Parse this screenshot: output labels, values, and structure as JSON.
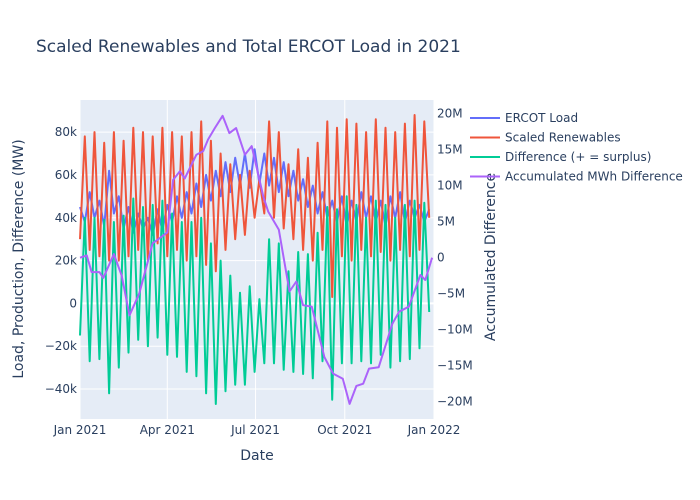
{
  "chart_data": {
    "type": "line",
    "title": "Scaled Renewables and Total ERCOT Load in 2021",
    "xlabel": "Date",
    "ylabel": "Load, Production, Difference (MW)",
    "y2label": "Accumulated Difference",
    "xlim": [
      "2021-01-01",
      "2022-01-01"
    ],
    "ylim": [
      -54000,
      95000
    ],
    "y2lim": [
      -22400000,
      21900000
    ],
    "grid": true,
    "legend_position": "right",
    "x_ticks": [
      {
        "date": "2021-01-01",
        "label": "Jan 2021"
      },
      {
        "date": "2021-04-01",
        "label": "Apr 2021"
      },
      {
        "date": "2021-07-01",
        "label": "Jul 2021"
      },
      {
        "date": "2021-10-01",
        "label": "Oct 2021"
      },
      {
        "date": "2022-01-01",
        "label": "Jan 2022"
      }
    ],
    "y_ticks": [
      {
        "value": 80000,
        "label": "80k"
      },
      {
        "value": 60000,
        "label": "60k"
      },
      {
        "value": 40000,
        "label": "40k"
      },
      {
        "value": 20000,
        "label": "20k"
      },
      {
        "value": 0,
        "label": "0"
      },
      {
        "value": -20000,
        "label": "−20k"
      },
      {
        "value": -40000,
        "label": "−40k"
      }
    ],
    "y2_ticks": [
      {
        "value": 20000000,
        "label": "20M"
      },
      {
        "value": 15000000,
        "label": "15M"
      },
      {
        "value": 10000000,
        "label": "10M"
      },
      {
        "value": 5000000,
        "label": "5M"
      },
      {
        "value": 0,
        "label": "0"
      },
      {
        "value": -5000000,
        "label": "−5M"
      },
      {
        "value": -10000000,
        "label": "−10M"
      },
      {
        "value": -15000000,
        "label": "−15M"
      },
      {
        "value": -20000000,
        "label": "−20M"
      }
    ],
    "x": [
      "2021-01-01",
      "2021-01-06",
      "2021-01-11",
      "2021-01-16",
      "2021-01-21",
      "2021-01-26",
      "2021-01-31",
      "2021-02-05",
      "2021-02-10",
      "2021-02-15",
      "2021-02-20",
      "2021-02-25",
      "2021-03-02",
      "2021-03-07",
      "2021-03-12",
      "2021-03-17",
      "2021-03-22",
      "2021-03-27",
      "2021-04-01",
      "2021-04-06",
      "2021-04-11",
      "2021-04-16",
      "2021-04-21",
      "2021-04-26",
      "2021-05-01",
      "2021-05-06",
      "2021-05-11",
      "2021-05-16",
      "2021-05-21",
      "2021-05-26",
      "2021-05-31",
      "2021-06-05",
      "2021-06-10",
      "2021-06-15",
      "2021-06-20",
      "2021-06-25",
      "2021-06-30",
      "2021-07-05",
      "2021-07-10",
      "2021-07-15",
      "2021-07-20",
      "2021-07-25",
      "2021-07-30",
      "2021-08-04",
      "2021-08-09",
      "2021-08-14",
      "2021-08-19",
      "2021-08-24",
      "2021-08-29",
      "2021-09-03",
      "2021-09-08",
      "2021-09-13",
      "2021-09-18",
      "2021-09-23",
      "2021-09-28",
      "2021-10-03",
      "2021-10-08",
      "2021-10-13",
      "2021-10-18",
      "2021-10-23",
      "2021-10-28",
      "2021-11-02",
      "2021-11-07",
      "2021-11-12",
      "2021-11-17",
      "2021-11-22",
      "2021-11-27",
      "2021-12-02",
      "2021-12-07",
      "2021-12-12",
      "2021-12-17",
      "2021-12-22",
      "2021-12-27"
    ],
    "series": [
      {
        "name": "ERCOT Load",
        "color": "#636efa",
        "axis": "y",
        "values": [
          45000,
          38000,
          52000,
          40000,
          48000,
          36000,
          62000,
          42000,
          50000,
          35000,
          45000,
          33000,
          42000,
          35000,
          40000,
          32000,
          44000,
          34000,
          46000,
          38000,
          50000,
          40000,
          52000,
          42000,
          56000,
          45000,
          60000,
          48000,
          62000,
          50000,
          66000,
          52000,
          68000,
          55000,
          70000,
          54000,
          72000,
          56000,
          70000,
          55000,
          68000,
          52000,
          66000,
          50000,
          62000,
          48000,
          58000,
          45000,
          55000,
          42000,
          52000,
          40000,
          48000,
          38000,
          50000,
          36000,
          48000,
          38000,
          52000,
          40000,
          50000,
          38000,
          48000,
          36000,
          50000,
          40000,
          52000,
          38000,
          48000,
          40000,
          46000,
          38000,
          44000
        ]
      },
      {
        "name": "Scaled Renewables",
        "color": "#EF553B",
        "axis": "y",
        "values": [
          30000,
          78000,
          25000,
          80000,
          22000,
          75000,
          20000,
          80000,
          20000,
          76000,
          22000,
          82000,
          25000,
          80000,
          20000,
          78000,
          28000,
          82000,
          22000,
          80000,
          25000,
          78000,
          20000,
          80000,
          22000,
          85000,
          18000,
          76000,
          15000,
          70000,
          25000,
          65000,
          30000,
          60000,
          32000,
          62000,
          40000,
          58000,
          42000,
          85000,
          40000,
          80000,
          35000,
          65000,
          30000,
          72000,
          25000,
          68000,
          20000,
          75000,
          25000,
          85000,
          3000,
          82000,
          22000,
          86000,
          20000,
          84000,
          25000,
          80000,
          22000,
          86000,
          24000,
          82000,
          20000,
          80000,
          25000,
          84000,
          22000,
          88000,
          25000,
          85000,
          40000
        ]
      },
      {
        "name": "Difference (+ = surplus)",
        "color": "#00cc96",
        "axis": "y",
        "values": [
          -15000,
          40000,
          -27000,
          40000,
          -26000,
          39000,
          -42000,
          38000,
          -30000,
          41000,
          -23000,
          49000,
          -17000,
          45000,
          -20000,
          46000,
          -16000,
          48000,
          -24000,
          42000,
          -25000,
          38000,
          -32000,
          38000,
          -34000,
          40000,
          -42000,
          28000,
          -47000,
          20000,
          -41000,
          13000,
          -38000,
          5000,
          -38000,
          8000,
          -32000,
          2000,
          -28000,
          30000,
          -28000,
          28000,
          -31000,
          15000,
          -32000,
          24000,
          -33000,
          23000,
          -35000,
          33000,
          -27000,
          45000,
          -45000,
          44000,
          -28000,
          50000,
          -28000,
          46000,
          -27000,
          40000,
          -28000,
          48000,
          -24000,
          46000,
          -30000,
          40000,
          -27000,
          46000,
          -26000,
          48000,
          -21000,
          47000,
          -4000
        ]
      },
      {
        "name": "Accumulated MWh Difference",
        "color": "#ab63fa",
        "axis": "y2",
        "x": [
          "2021-01-01",
          "2021-01-08",
          "2021-01-13",
          "2021-01-21",
          "2021-01-25",
          "2021-02-05",
          "2021-02-13",
          "2021-02-21",
          "2021-03-03",
          "2021-03-17",
          "2021-04-01",
          "2021-04-07",
          "2021-04-14",
          "2021-04-19",
          "2021-05-01",
          "2021-05-08",
          "2021-05-13",
          "2021-05-20",
          "2021-05-28",
          "2021-06-04",
          "2021-06-11",
          "2021-06-20",
          "2021-06-27",
          "2021-07-09",
          "2021-07-14",
          "2021-07-25",
          "2021-08-05",
          "2021-08-12",
          "2021-08-19",
          "2021-08-28",
          "2021-09-10",
          "2021-09-19",
          "2021-09-29",
          "2021-10-06",
          "2021-10-13",
          "2021-10-20",
          "2021-10-26",
          "2021-11-05",
          "2021-11-19",
          "2021-11-26",
          "2021-12-06",
          "2021-12-18",
          "2021-12-23",
          "2021-12-30"
        ],
        "values": [
          0,
          300000,
          -2000000,
          -2000000,
          -2800000,
          500000,
          -2500000,
          -8000000,
          -5000000,
          2000000,
          3500000,
          10800000,
          12000000,
          11000000,
          14300000,
          14800000,
          16400000,
          18000000,
          19700000,
          17300000,
          18000000,
          14300000,
          15500000,
          8500000,
          6400000,
          3900000,
          -4700000,
          -3300000,
          -6600000,
          -6800000,
          -13800000,
          -16100000,
          -16800000,
          -20300000,
          -17800000,
          -17500000,
          -15400000,
          -15200000,
          -9200000,
          -7500000,
          -6800000,
          -2400000,
          -3100000,
          0
        ]
      }
    ]
  }
}
